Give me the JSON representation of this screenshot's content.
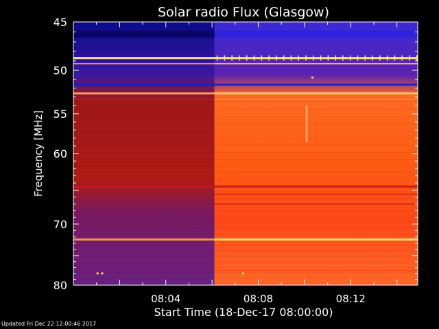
{
  "chart_data": {
    "type": "heatmap",
    "title": "Solar radio Flux (Glasgow)",
    "xlabel": "Start Time (18-Dec-17 08:00:00)",
    "ylabel": "Frequency [MHz]",
    "x_ticks": [
      "08:04",
      "08:08",
      "08:12"
    ],
    "x_tick_minutes": [
      4,
      8,
      12
    ],
    "xlim_minutes": [
      0,
      14.9
    ],
    "y_ticks": [
      45,
      50,
      55,
      60,
      70,
      80
    ],
    "ylim": [
      45,
      80
    ],
    "y_scale": "log",
    "event_start_minutes": 6.1,
    "colors": {
      "quiet_low": "#0a0a9a",
      "quiet_high": "#b81818",
      "active_low": "#3a28d8",
      "active_high": "#ff5a14",
      "line_bright": "#ffe870"
    }
  },
  "footer": {
    "updated": "Updated Fri Dec 22 12:00:46 2017"
  }
}
